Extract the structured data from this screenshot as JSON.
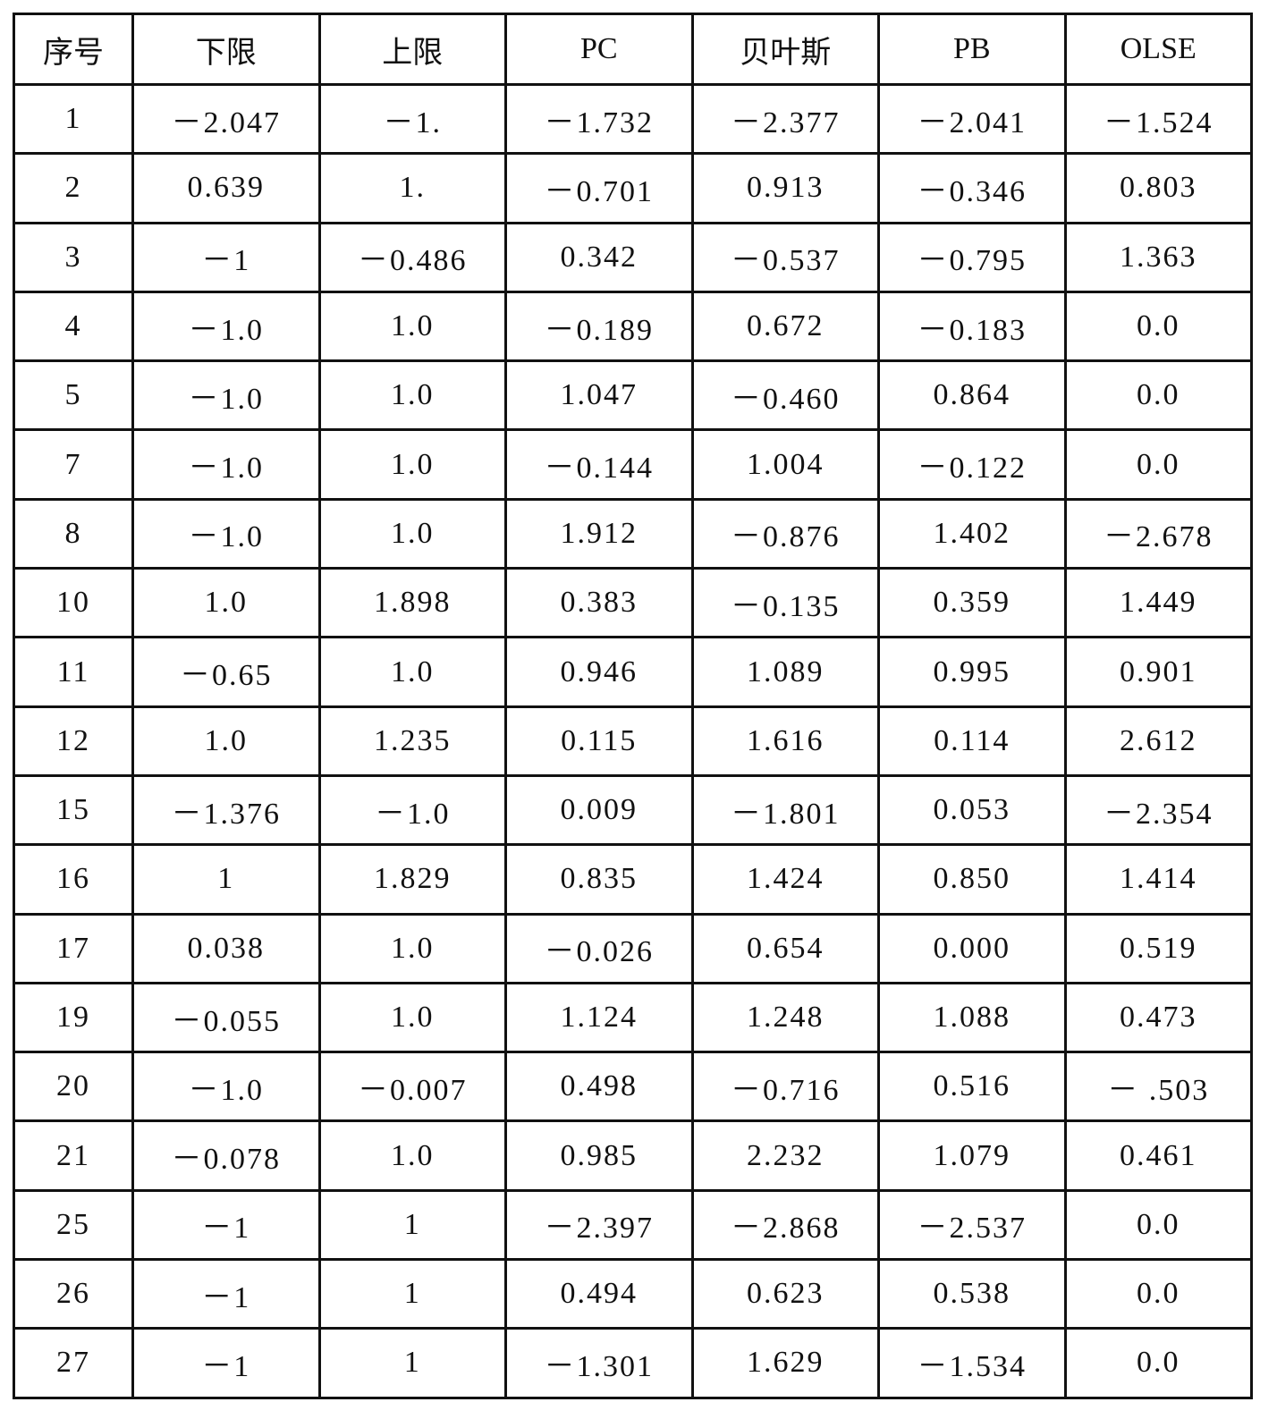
{
  "table": {
    "headers": [
      "序号",
      "下限",
      "上限",
      "PC",
      "贝叶斯",
      "PB",
      "OLSE"
    ],
    "rows": [
      [
        "1",
        "－2.047",
        "－1.",
        "－1.732",
        "－2.377",
        "－2.041",
        "－1.524"
      ],
      [
        "2",
        "0.639",
        "1.",
        "－0.701",
        "0.913",
        "－0.346",
        "0.803"
      ],
      [
        "3",
        "－1",
        "－0.486",
        "0.342",
        "－0.537",
        "－0.795",
        "1.363"
      ],
      [
        "4",
        "－1.0",
        "1.0",
        "－0.189",
        "0.672",
        "－0.183",
        "0.0"
      ],
      [
        "5",
        "－1.0",
        "1.0",
        "1.047",
        "－0.460",
        "0.864",
        "0.0"
      ],
      [
        "7",
        "－1.0",
        "1.0",
        "－0.144",
        "1.004",
        "－0.122",
        "0.0"
      ],
      [
        "8",
        "－1.0",
        "1.0",
        "1.912",
        "－0.876",
        "1.402",
        "－2.678"
      ],
      [
        "10",
        "1.0",
        "1.898",
        "0.383",
        "－0.135",
        "0.359",
        "1.449"
      ],
      [
        "11",
        "－0.65",
        "1.0",
        "0.946",
        "1.089",
        "0.995",
        "0.901"
      ],
      [
        "12",
        "1.0",
        "1.235",
        "0.115",
        "1.616",
        "0.114",
        "2.612"
      ],
      [
        "15",
        "－1.376",
        "－1.0",
        "0.009",
        "－1.801",
        "0.053",
        "－2.354"
      ],
      [
        "16",
        "1",
        "1.829",
        "0.835",
        "1.424",
        "0.850",
        "1.414"
      ],
      [
        "17",
        "0.038",
        "1.0",
        "－0.026",
        "0.654",
        "0.000",
        "0.519"
      ],
      [
        "19",
        "－0.055",
        "1.0",
        "1.124",
        "1.248",
        "1.088",
        "0.473"
      ],
      [
        "20",
        "－1.0",
        "－0.007",
        "0.498",
        "－0.716",
        "0.516",
        "－ .503"
      ],
      [
        "21",
        "－0.078",
        "1.0",
        "0.985",
        "2.232",
        "1.079",
        "0.461"
      ],
      [
        "25",
        "－1",
        "1",
        "－2.397",
        "－2.868",
        "－2.537",
        "0.0"
      ],
      [
        "26",
        "－1",
        "1",
        "0.494",
        "0.623",
        "0.538",
        "0.0"
      ],
      [
        "27",
        "－1",
        "1",
        "－1.301",
        "1.629",
        "－1.534",
        "0.0"
      ]
    ]
  }
}
